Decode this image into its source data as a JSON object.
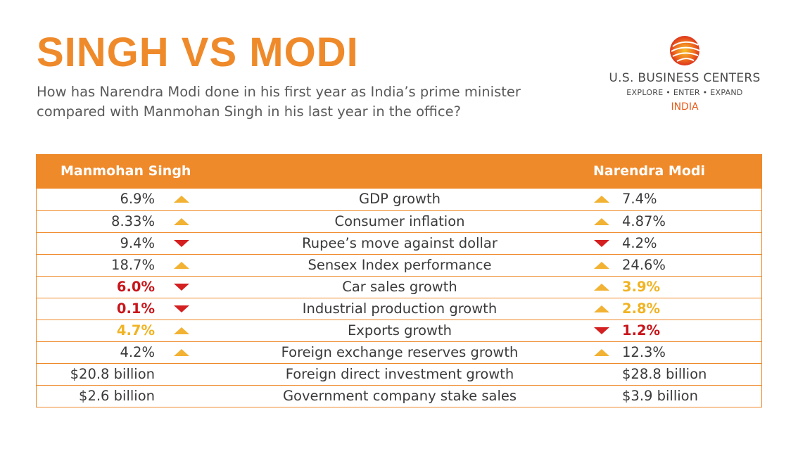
{
  "header": {
    "title": "SINGH VS MODI",
    "subtitle": "How has Narendra Modi done in his first year as India’s prime minister compared with Manmohan Singh in his last year in the office?"
  },
  "logo": {
    "name": "U.S. BUSINESS CENTERS",
    "tagline": "EXPLORE • ENTER • EXPAND",
    "country": "INDIA",
    "colors": {
      "primary": "#e85c1a",
      "accent": "#f2b233"
    }
  },
  "table": {
    "left_header": "Manmohan Singh",
    "right_header": "Narendra Modi",
    "colors": {
      "header_bg": "#ef8a2b",
      "up_arrow": "#f2b233",
      "down_arrow": "#d42020",
      "highlight_red": "#c8151b",
      "highlight_yellow": "#f0b323"
    },
    "rows": [
      {
        "metric": "GDP growth",
        "singh": "6.9%",
        "singh_arrow": "up",
        "singh_color": "normal",
        "modi": "7.4%",
        "modi_arrow": "up",
        "modi_color": "normal"
      },
      {
        "metric": "Consumer inflation",
        "singh": "8.33%",
        "singh_arrow": "up",
        "singh_color": "normal",
        "modi": "4.87%",
        "modi_arrow": "up",
        "modi_color": "normal"
      },
      {
        "metric": "Rupee’s move against dollar",
        "singh": "9.4%",
        "singh_arrow": "down",
        "singh_color": "normal",
        "modi": "4.2%",
        "modi_arrow": "down",
        "modi_color": "normal"
      },
      {
        "metric": "Sensex Index performance",
        "singh": "18.7%",
        "singh_arrow": "up",
        "singh_color": "normal",
        "modi": "24.6%",
        "modi_arrow": "up",
        "modi_color": "normal"
      },
      {
        "metric": "Car sales growth",
        "singh": "6.0%",
        "singh_arrow": "down",
        "singh_color": "red",
        "modi": "3.9%",
        "modi_arrow": "up",
        "modi_color": "yellow"
      },
      {
        "metric": "Industrial production growth",
        "singh": "0.1%",
        "singh_arrow": "down",
        "singh_color": "red",
        "modi": "2.8%",
        "modi_arrow": "up",
        "modi_color": "yellow"
      },
      {
        "metric": "Exports growth",
        "singh": "4.7%",
        "singh_arrow": "up",
        "singh_color": "yellow",
        "modi": "1.2%",
        "modi_arrow": "down",
        "modi_color": "red"
      },
      {
        "metric": "Foreign exchange reserves growth",
        "singh": "4.2%",
        "singh_arrow": "up",
        "singh_color": "normal",
        "modi": "12.3%",
        "modi_arrow": "up",
        "modi_color": "normal"
      },
      {
        "metric": "Foreign direct investment growth",
        "singh": "$20.8 billion",
        "singh_arrow": "none",
        "singh_color": "normal",
        "modi": "$28.8 billion",
        "modi_arrow": "none",
        "modi_color": "normal"
      },
      {
        "metric": "Government company stake sales",
        "singh": "$2.6 billion",
        "singh_arrow": "none",
        "singh_color": "normal",
        "modi": "$3.9 billion",
        "modi_arrow": "none",
        "modi_color": "normal"
      }
    ]
  }
}
